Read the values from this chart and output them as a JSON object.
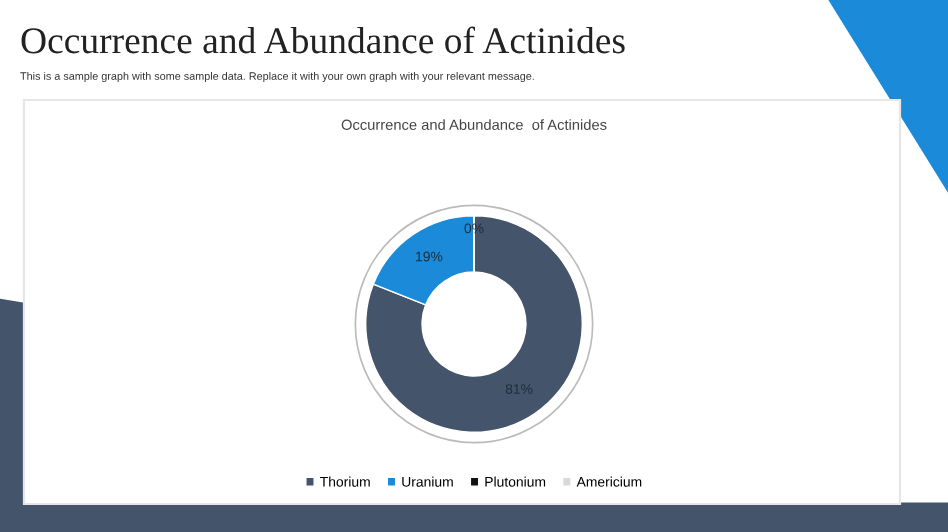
{
  "chart_data": {
    "type": "donut",
    "title": "Occurrence and Abundance  of Actinides",
    "annotations": [
      "Occurrence and Abundance of Actinides",
      "This is a sample graph with some sample data. Replace it with your own graph with your relevant message."
    ],
    "categories": [
      "Thorium",
      "Uranium",
      "Plutonium",
      "Americium"
    ],
    "values": [
      81,
      19,
      0,
      0
    ],
    "colors": [
      "#44546a",
      "#1b8ad8",
      "#111111",
      "#d9d9d9"
    ],
    "value_labels": [
      "81%",
      "19%",
      "0%",
      null
    ],
    "legend": "bottom"
  }
}
